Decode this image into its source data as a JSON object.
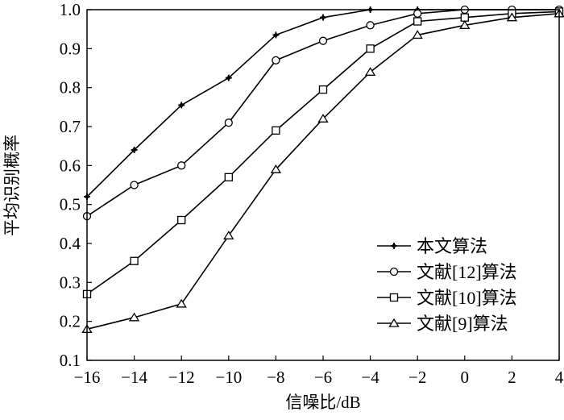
{
  "chart_data": {
    "type": "line",
    "title": "",
    "xlabel": "信噪比/dB",
    "ylabel": "平均识别概率",
    "xlim": [
      -16,
      4
    ],
    "ylim": [
      0.1,
      1.0
    ],
    "xticks": [
      -16,
      -14,
      -12,
      -10,
      -8,
      -6,
      -4,
      -2,
      0,
      2,
      4
    ],
    "xtick_labels": [
      "−16",
      "−14",
      "−12",
      "−10",
      "−8",
      "−6",
      "−4",
      "−2",
      "0",
      "2",
      "4"
    ],
    "yticks": [
      0.1,
      0.2,
      0.3,
      0.4,
      0.5,
      0.6,
      0.7,
      0.8,
      0.9,
      1.0
    ],
    "ytick_labels": [
      "0.1",
      "0.2",
      "0.3",
      "0.4",
      "0.5",
      "0.6",
      "0.7",
      "0.8",
      "0.9",
      "1.0"
    ],
    "grid": false,
    "legend_position": "bottom-right",
    "x": [
      -16,
      -14,
      -12,
      -10,
      -8,
      -6,
      -4,
      -2,
      0,
      2,
      4
    ],
    "series": [
      {
        "name": "本文算法",
        "marker": "plus",
        "values": [
          0.52,
          0.64,
          0.755,
          0.825,
          0.935,
          0.98,
          1.0,
          1.0,
          1.0,
          1.0,
          1.0
        ]
      },
      {
        "name": "文献[12]算法",
        "marker": "circle",
        "values": [
          0.47,
          0.55,
          0.6,
          0.71,
          0.87,
          0.92,
          0.96,
          0.99,
          1.0,
          1.0,
          1.0
        ]
      },
      {
        "name": "文献[10]算法",
        "marker": "square",
        "values": [
          0.27,
          0.355,
          0.46,
          0.57,
          0.69,
          0.795,
          0.9,
          0.97,
          0.98,
          0.99,
          0.995
        ]
      },
      {
        "name": "文献[9]算法",
        "marker": "triangle",
        "values": [
          0.18,
          0.21,
          0.245,
          0.42,
          0.59,
          0.72,
          0.84,
          0.935,
          0.96,
          0.98,
          0.99
        ]
      }
    ]
  }
}
